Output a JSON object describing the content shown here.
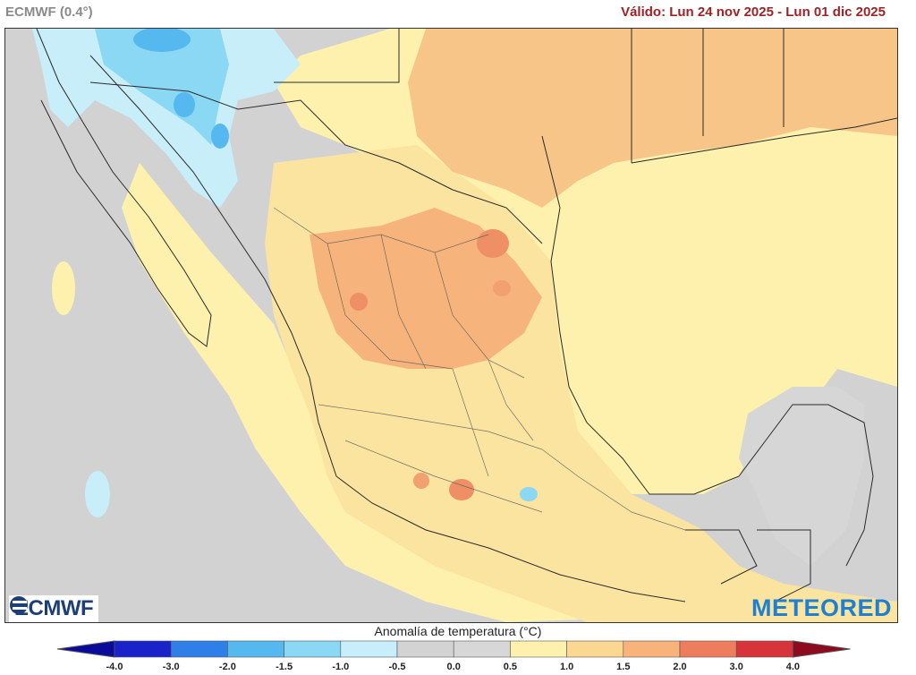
{
  "header": {
    "model": "ECMWF (0.4°)",
    "valid": "Válido: Lun 24 nov 2025 - Lun 01 dic 2025"
  },
  "branding": {
    "left_logo": "ECMWF",
    "right_logo": "METEORED"
  },
  "legend": {
    "title": "Anomalía de temperatura (°C)",
    "ticks": [
      "-4.0",
      "-3.0",
      "-2.0",
      "-1.5",
      "-1.0",
      "-0.5",
      "0.0",
      "0.5",
      "1.0",
      "1.5",
      "2.0",
      "3.0",
      "4.0"
    ],
    "colors": [
      "#1a22c9",
      "#2f7fe8",
      "#55b8ee",
      "#8ad8f4",
      "#c7eef9",
      "#d3d3d3",
      "#d7d7d7",
      "#fdf1ad",
      "#fbd792",
      "#f7b37a",
      "#ee7d5e",
      "#d6333b"
    ],
    "min_color": "#0b0b9a",
    "max_color": "#8e0a1e"
  }
}
